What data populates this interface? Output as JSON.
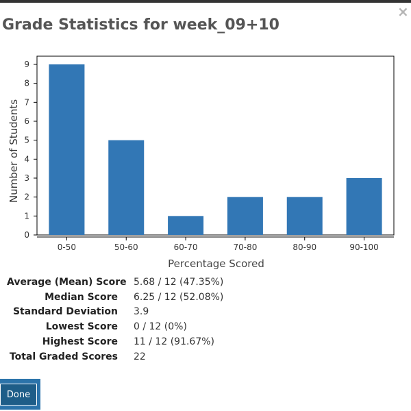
{
  "dialog": {
    "title": "Grade Statistics for week_09+10",
    "close_label": "×"
  },
  "chart_data": {
    "type": "bar",
    "categories": [
      "0-50",
      "50-60",
      "60-70",
      "70-80",
      "80-90",
      "90-100"
    ],
    "values": [
      9,
      5,
      1,
      2,
      2,
      3
    ],
    "xlabel": "Percentage Scored",
    "ylabel": "Number of Students",
    "ylim": [
      0,
      9
    ],
    "yticks": [
      "0",
      "1",
      "2",
      "3",
      "4",
      "5",
      "6",
      "7",
      "8",
      "9"
    ],
    "bar_color": "#3277b5",
    "grid": false,
    "legend": "none"
  },
  "stats": {
    "rows": [
      {
        "label": "Average (Mean) Score",
        "value": "5.68 / 12 (47.35%)"
      },
      {
        "label": "Median Score",
        "value": "6.25 / 12 (52.08%)"
      },
      {
        "label": "Standard Deviation",
        "value": "3.9"
      },
      {
        "label": "Lowest Score",
        "value": "0 / 12 (0%)"
      },
      {
        "label": "Highest Score",
        "value": "11 / 12 (91.67%)"
      },
      {
        "label": "Total Graded Scores",
        "value": "22"
      }
    ]
  },
  "buttons": {
    "done_label": "Done"
  }
}
